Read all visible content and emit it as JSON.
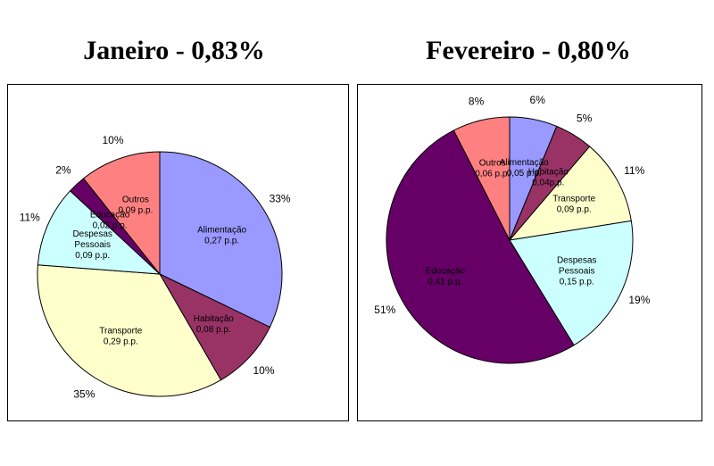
{
  "chart_data": [
    {
      "type": "pie",
      "title": "Janeiro - 0,83%",
      "slices": [
        {
          "name": "Alimentação",
          "value": 0.27,
          "value_label": "0,27 p.p.",
          "percent": "33%",
          "color": "#9999ff"
        },
        {
          "name": "Habitação",
          "value": 0.08,
          "value_label": "0,08 p.p.",
          "percent": "10%",
          "color": "#993366"
        },
        {
          "name": "Transporte",
          "value": 0.29,
          "value_label": "0,29 p.p.",
          "percent": "35%",
          "color": "#ffffcc"
        },
        {
          "name": "Despesas Pessoais",
          "value": 0.09,
          "value_label": "0,09 p.p.",
          "percent": "11%",
          "color": "#ccffff"
        },
        {
          "name": "Educação",
          "value": 0.02,
          "value_label": "0,02 p.p.",
          "percent": "2%",
          "color": "#660066"
        },
        {
          "name": "Outros",
          "value": 0.09,
          "value_label": "0,09 p.p.",
          "percent": "10%",
          "color": "#ff8080"
        }
      ]
    },
    {
      "type": "pie",
      "title": "Fevereiro - 0,80%",
      "slices": [
        {
          "name": "Alimentação",
          "value": 0.05,
          "value_label": "0,05 p.p.",
          "percent": "6%",
          "color": "#9999ff"
        },
        {
          "name": "Habitação",
          "value": 0.04,
          "value_label": "0,04p.p.",
          "percent": "5%",
          "color": "#993366"
        },
        {
          "name": "Transporte",
          "value": 0.09,
          "value_label": "0,09 p.p.",
          "percent": "11%",
          "color": "#ffffcc"
        },
        {
          "name": "Despesas Pessoais",
          "value": 0.15,
          "value_label": "0,15 p.p.",
          "percent": "19%",
          "color": "#ccffff"
        },
        {
          "name": "Educação",
          "value": 0.41,
          "value_label": "0,41 p.p.",
          "percent": "51%",
          "color": "#660066"
        },
        {
          "name": "Outros",
          "value": 0.06,
          "value_label": "0,06 p.p.",
          "percent": "8%",
          "color": "#ff8080"
        }
      ]
    }
  ]
}
